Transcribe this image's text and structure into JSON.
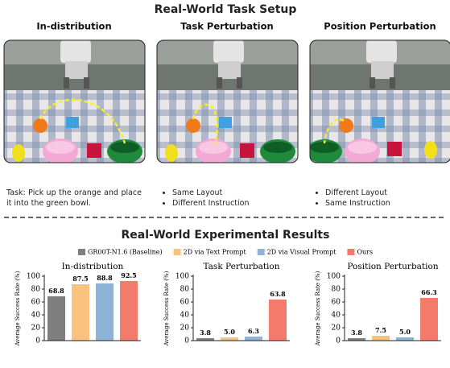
{
  "setup": {
    "title": "Real-World Task Setup",
    "columns": [
      {
        "heading": "In-distribution",
        "caption": "Task: Pick up the orange and place it into the green bowl."
      },
      {
        "heading": "Task Perturbation",
        "bullets": [
          "Same Layout",
          "Different Instruction"
        ]
      },
      {
        "heading": "Position Perturbation",
        "bullets": [
          "Different Layout",
          "Same Instruction"
        ]
      }
    ]
  },
  "results": {
    "title": "Real-World Experimental Results"
  },
  "legend": {
    "series": [
      {
        "name": "GR00T-N1.6 (Baseline)",
        "color": "#7f7f7f"
      },
      {
        "name": "2D via Text Prompt",
        "color": "#f9c27e"
      },
      {
        "name": "2D via Visual Prompt",
        "color": "#8db3d7"
      },
      {
        "name": "Ours",
        "color": "#f47a6c"
      }
    ]
  },
  "chart_data": [
    {
      "type": "bar",
      "title": "In-distribution",
      "ylabel": "Average Success Rate (%)",
      "values": [
        68.8,
        87.5,
        88.8,
        92.5
      ],
      "value_labels": [
        "68.8",
        "87.5",
        "88.8",
        "92.5"
      ],
      "ylim": [
        0,
        100
      ],
      "yticks": [
        0,
        20,
        40,
        60,
        80,
        100
      ]
    },
    {
      "type": "bar",
      "title": "Task Perturbation",
      "ylabel": "Average Success Rate (%)",
      "values": [
        3.8,
        5,
        6.3,
        63.8
      ],
      "value_labels": [
        "3.8",
        "5.0",
        "6.3",
        "63.8"
      ],
      "ylim": [
        0,
        100
      ],
      "yticks": [
        0,
        20,
        40,
        60,
        80,
        100
      ]
    },
    {
      "type": "bar",
      "title": "Position Perturbation",
      "ylabel": "Average Success Rate (%)",
      "values": [
        3.8,
        7.5,
        5,
        66.3
      ],
      "value_labels": [
        "3.8",
        "7.5",
        "5.0",
        "66.3"
      ],
      "ylim": [
        0,
        100
      ],
      "yticks": [
        0,
        20,
        40,
        60,
        80,
        100
      ]
    }
  ]
}
